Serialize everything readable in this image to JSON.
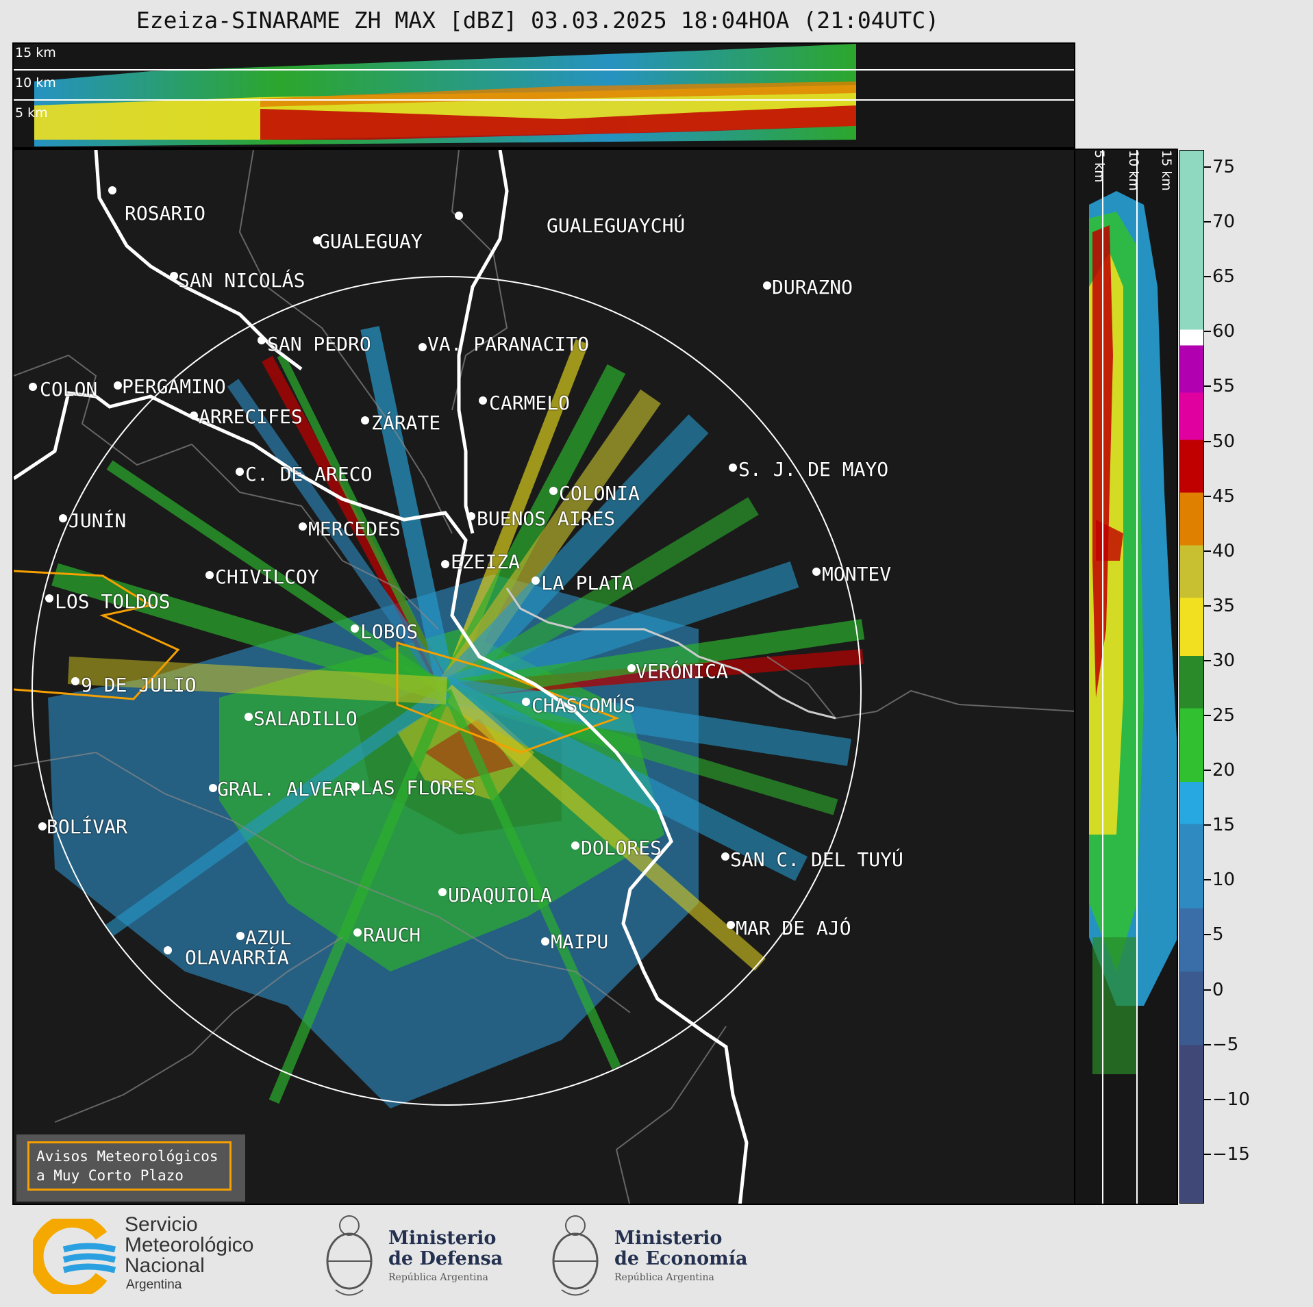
{
  "title": "Ezeiza-SINARAME ZH MAX [dBZ] 03.03.2025 18:04HOA (21:04UTC)",
  "height_labels": {
    "h15": "15 km",
    "h10": "10 km",
    "h5": "5 km"
  },
  "colorbar": {
    "ticks": [
      "75",
      "70",
      "65",
      "60",
      "55",
      "50",
      "45",
      "40",
      "35",
      "30",
      "25",
      "20",
      "15",
      "10",
      "5",
      "0",
      "−5",
      "−10",
      "−15"
    ],
    "colors": {
      "c60_75": "#8fd9c0",
      "c55_60": "#b000b0",
      "c50_55": "#e000a0",
      "c45_50": "#c00000",
      "c40_45": "#e08000",
      "c35_40": "#c8c030",
      "c30_35": "#f0e020",
      "c25_30": "#2a8a2a",
      "c20_25": "#30c030",
      "c15_20": "#28a8e0",
      "c10_15": "#2e8ac0",
      "c5_10": "#3a6ea8",
      "c0_5": "#3a5a90",
      "cneg": "#404878"
    }
  },
  "cities": [
    {
      "name": "ROSARIO"
    },
    {
      "name": "GUALEGUAYCHÚ"
    },
    {
      "name": "GUALEGUAY"
    },
    {
      "name": "SAN NICOLÁS"
    },
    {
      "name": "DURAZNO"
    },
    {
      "name": "SAN PEDRO"
    },
    {
      "name": "VA. PARANACITO"
    },
    {
      "name": "COLON"
    },
    {
      "name": "PERGAMINO"
    },
    {
      "name": "CARMELO"
    },
    {
      "name": "ARRECIFES"
    },
    {
      "name": "ZÁRATE"
    },
    {
      "name": "S. J. DE MAYO"
    },
    {
      "name": "C. DE ARECO"
    },
    {
      "name": "COLONIA"
    },
    {
      "name": "JUNÍN"
    },
    {
      "name": "BUENOS AIRES"
    },
    {
      "name": "MERCEDES"
    },
    {
      "name": "EZEIZA"
    },
    {
      "name": "MONTEV"
    },
    {
      "name": "CHIVILCOY"
    },
    {
      "name": "LA PLATA"
    },
    {
      "name": "LOS TOLDOS"
    },
    {
      "name": "LOBOS"
    },
    {
      "name": "VERÓNICA"
    },
    {
      "name": "9 DE JULIO"
    },
    {
      "name": "CHASCOMÚS"
    },
    {
      "name": "SALADILLO"
    },
    {
      "name": "GRAL. ALVEAR"
    },
    {
      "name": "LAS FLORES"
    },
    {
      "name": "BOLÍVAR"
    },
    {
      "name": "DOLORES"
    },
    {
      "name": "SAN C. DEL TUYÚ"
    },
    {
      "name": "UDAQUIOLA"
    },
    {
      "name": "MAR DE AJÓ"
    },
    {
      "name": "AZUL"
    },
    {
      "name": "RAUCH"
    },
    {
      "name": "OLAVARRÍA"
    },
    {
      "name": "MAIPU"
    }
  ],
  "avisos": {
    "line1": "Avisos Meteorológicos",
    "line2": "a Muy Corto Plazo"
  },
  "footer": {
    "smn": {
      "l1": "Servicio",
      "l2": "Meteorológico",
      "l3": "Nacional",
      "l4": "Argentina"
    },
    "defensa": {
      "l1": "Ministerio",
      "l2": "de Defensa",
      "l3": "República Argentina"
    },
    "economia": {
      "l1": "Ministerio",
      "l2": "de Economía",
      "l3": "República Argentina"
    }
  }
}
